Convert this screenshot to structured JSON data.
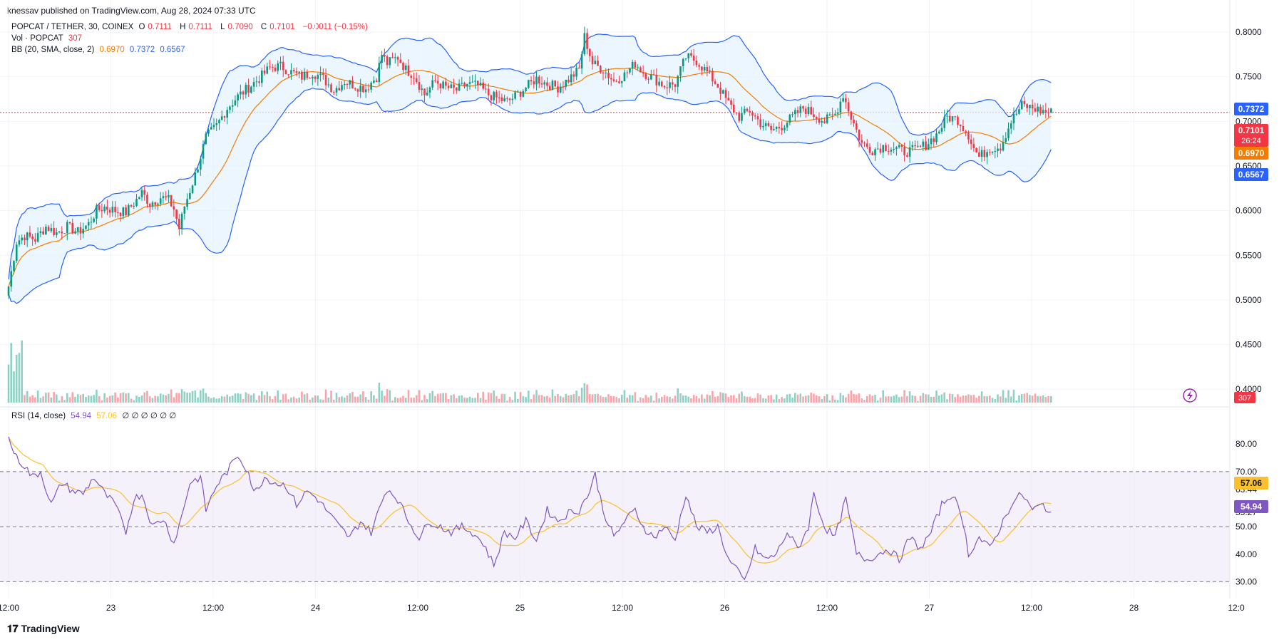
{
  "header": {
    "published": "knessav published on TradingView.com, Aug 28, 2024 07:33 UTC"
  },
  "legend": {
    "symbol": "POPCAT / TETHER, 30, COINEX",
    "o_label": "O",
    "o": "0.7111",
    "h_label": "H",
    "h": "0.7111",
    "l_label": "L",
    "l": "0.7090",
    "c_label": "C",
    "c": "0.7101",
    "change": "−0.0011 (−0.15%)",
    "vol_label": "Vol · POPCAT",
    "vol": "307",
    "bb_label": "BB (20, SMA, close, 2)",
    "bb_basis": "0.6970",
    "bb_upper": "0.7372",
    "bb_lower": "0.6567",
    "rsi_label": "RSI (14, close)",
    "rsi": "54.94",
    "rsi_ma": "57.06",
    "rsi_extra": "∅ ∅ ∅ ∅ ∅ ∅"
  },
  "badges": {
    "upper": "0.7372",
    "price": "0.7101",
    "countdown": "26:24",
    "basis": "0.6970",
    "lower": "0.6567",
    "volume": "307",
    "rsi_ma": "57.06",
    "rsi": "54.94"
  },
  "footer": {
    "logo": "TradingView"
  },
  "colors": {
    "up": "#089981",
    "down": "#f23645",
    "bb_upper": "#2962ff",
    "bb_basis": "#f57c00",
    "bb_fill": "#e3f2fd",
    "rsi": "#7e57c2",
    "rsi_ma": "#fbc02d",
    "rsi_band": "#ede7f6"
  },
  "chart_data": {
    "type": "candlestick",
    "price_axis": {
      "ticks": [
        "0.8000",
        "0.7500",
        "0.7000",
        "0.6500",
        "0.6000",
        "0.5500",
        "0.5000",
        "0.4500",
        "0.4000"
      ],
      "ylim": [
        0.385,
        0.82
      ]
    },
    "rsi_axis": {
      "ticks": [
        "80.00",
        "70.00",
        "63.44",
        "55.27",
        "50.00",
        "40.00",
        "30.00"
      ],
      "ylim": [
        27,
        86
      ],
      "bands": [
        70,
        50,
        30
      ]
    },
    "x_axis": {
      "ticks": [
        "12:00",
        "23",
        "12:00",
        "24",
        "12:00",
        "25",
        "12:00",
        "26",
        "12:00",
        "27",
        "12:00",
        "28",
        "12:0"
      ]
    },
    "price_keypoints": [
      [
        0,
        0.515
      ],
      [
        3,
        0.565
      ],
      [
        6,
        0.572
      ],
      [
        10,
        0.568
      ],
      [
        14,
        0.582
      ],
      [
        18,
        0.575
      ],
      [
        22,
        0.582
      ],
      [
        26,
        0.576
      ],
      [
        30,
        0.585
      ],
      [
        33,
        0.6
      ],
      [
        36,
        0.604
      ],
      [
        40,
        0.6
      ],
      [
        44,
        0.598
      ],
      [
        48,
        0.612
      ],
      [
        50,
        0.62
      ],
      [
        53,
        0.608
      ],
      [
        57,
        0.615
      ],
      [
        60,
        0.612
      ],
      [
        62,
        0.602
      ],
      [
        64,
        0.58
      ],
      [
        66,
        0.605
      ],
      [
        70,
        0.64
      ],
      [
        74,
        0.682
      ],
      [
        78,
        0.695
      ],
      [
        82,
        0.715
      ],
      [
        86,
        0.728
      ],
      [
        90,
        0.738
      ],
      [
        94,
        0.748
      ],
      [
        98,
        0.76
      ],
      [
        102,
        0.762
      ],
      [
        106,
        0.755
      ],
      [
        110,
        0.75
      ],
      [
        114,
        0.755
      ],
      [
        118,
        0.748
      ],
      [
        122,
        0.735
      ],
      [
        126,
        0.745
      ],
      [
        130,
        0.74
      ],
      [
        134,
        0.737
      ],
      [
        138,
        0.75
      ],
      [
        140,
        0.775
      ],
      [
        142,
        0.765
      ],
      [
        146,
        0.772
      ],
      [
        149,
        0.758
      ],
      [
        152,
        0.752
      ],
      [
        156,
        0.73
      ],
      [
        160,
        0.745
      ],
      [
        164,
        0.738
      ],
      [
        168,
        0.735
      ],
      [
        172,
        0.742
      ],
      [
        176,
        0.74
      ],
      [
        180,
        0.73
      ],
      [
        184,
        0.725
      ],
      [
        187,
        0.722
      ],
      [
        190,
        0.728
      ],
      [
        194,
        0.738
      ],
      [
        198,
        0.748
      ],
      [
        202,
        0.742
      ],
      [
        206,
        0.738
      ],
      [
        210,
        0.747
      ],
      [
        214,
        0.758
      ],
      [
        216,
        0.795
      ],
      [
        219,
        0.765
      ],
      [
        223,
        0.758
      ],
      [
        227,
        0.745
      ],
      [
        231,
        0.752
      ],
      [
        235,
        0.765
      ],
      [
        238,
        0.755
      ],
      [
        242,
        0.748
      ],
      [
        246,
        0.74
      ],
      [
        250,
        0.742
      ],
      [
        254,
        0.772
      ],
      [
        258,
        0.768
      ],
      [
        262,
        0.755
      ],
      [
        266,
        0.74
      ],
      [
        270,
        0.72
      ],
      [
        274,
        0.705
      ],
      [
        278,
        0.712
      ],
      [
        282,
        0.698
      ],
      [
        286,
        0.69
      ],
      [
        290,
        0.695
      ],
      [
        294,
        0.705
      ],
      [
        298,
        0.715
      ],
      [
        302,
        0.708
      ],
      [
        306,
        0.7
      ],
      [
        310,
        0.708
      ],
      [
        313,
        0.73
      ],
      [
        316,
        0.705
      ],
      [
        320,
        0.675
      ],
      [
        324,
        0.668
      ],
      [
        328,
        0.672
      ],
      [
        332,
        0.67
      ],
      [
        336,
        0.666
      ],
      [
        340,
        0.668
      ],
      [
        344,
        0.674
      ],
      [
        348,
        0.685
      ],
      [
        352,
        0.705
      ],
      [
        356,
        0.702
      ],
      [
        360,
        0.685
      ],
      [
        362,
        0.67
      ],
      [
        364,
        0.66
      ],
      [
        368,
        0.67
      ],
      [
        372,
        0.672
      ],
      [
        376,
        0.7
      ],
      [
        380,
        0.718
      ],
      [
        384,
        0.715
      ],
      [
        387,
        0.712
      ],
      [
        390,
        0.71
      ]
    ],
    "rsi_keypoints": [
      [
        0,
        82
      ],
      [
        3,
        75
      ],
      [
        6,
        72
      ],
      [
        9,
        68
      ],
      [
        12,
        70
      ],
      [
        16,
        58
      ],
      [
        20,
        66
      ],
      [
        24,
        63
      ],
      [
        28,
        62
      ],
      [
        32,
        68
      ],
      [
        36,
        62
      ],
      [
        40,
        58
      ],
      [
        44,
        48
      ],
      [
        47,
        60
      ],
      [
        50,
        62
      ],
      [
        54,
        50
      ],
      [
        58,
        53
      ],
      [
        62,
        44
      ],
      [
        65,
        54
      ],
      [
        68,
        66
      ],
      [
        72,
        68
      ],
      [
        74,
        56
      ],
      [
        78,
        65
      ],
      [
        82,
        70
      ],
      [
        86,
        76
      ],
      [
        90,
        70
      ],
      [
        92,
        62
      ],
      [
        96,
        68
      ],
      [
        100,
        66
      ],
      [
        104,
        65
      ],
      [
        108,
        58
      ],
      [
        112,
        63
      ],
      [
        116,
        60
      ],
      [
        120,
        55
      ],
      [
        124,
        50
      ],
      [
        128,
        46
      ],
      [
        132,
        52
      ],
      [
        136,
        48
      ],
      [
        140,
        59
      ],
      [
        142,
        64
      ],
      [
        146,
        60
      ],
      [
        150,
        52
      ],
      [
        154,
        46
      ],
      [
        158,
        52
      ],
      [
        162,
        50
      ],
      [
        166,
        48
      ],
      [
        170,
        50
      ],
      [
        174,
        48
      ],
      [
        178,
        44
      ],
      [
        182,
        36
      ],
      [
        186,
        48
      ],
      [
        190,
        46
      ],
      [
        194,
        52
      ],
      [
        198,
        45
      ],
      [
        202,
        56
      ],
      [
        206,
        52
      ],
      [
        210,
        55
      ],
      [
        214,
        56
      ],
      [
        218,
        63
      ],
      [
        220,
        69
      ],
      [
        223,
        56
      ],
      [
        227,
        46
      ],
      [
        231,
        52
      ],
      [
        235,
        56
      ],
      [
        238,
        50
      ],
      [
        242,
        46
      ],
      [
        246,
        50
      ],
      [
        250,
        45
      ],
      [
        254,
        62
      ],
      [
        258,
        50
      ],
      [
        262,
        48
      ],
      [
        266,
        50
      ],
      [
        270,
        38
      ],
      [
        274,
        33
      ],
      [
        276,
        30
      ],
      [
        280,
        42
      ],
      [
        284,
        38
      ],
      [
        288,
        40
      ],
      [
        292,
        48
      ],
      [
        296,
        42
      ],
      [
        300,
        50
      ],
      [
        302,
        62
      ],
      [
        306,
        50
      ],
      [
        310,
        46
      ],
      [
        314,
        60
      ],
      [
        318,
        40
      ],
      [
        322,
        38
      ],
      [
        326,
        40
      ],
      [
        330,
        42
      ],
      [
        334,
        38
      ],
      [
        338,
        46
      ],
      [
        342,
        42
      ],
      [
        346,
        48
      ],
      [
        350,
        58
      ],
      [
        354,
        62
      ],
      [
        358,
        52
      ],
      [
        360,
        40
      ],
      [
        364,
        46
      ],
      [
        368,
        42
      ],
      [
        372,
        50
      ],
      [
        376,
        58
      ],
      [
        380,
        62
      ],
      [
        384,
        56
      ],
      [
        388,
        58
      ],
      [
        391,
        55
      ]
    ]
  }
}
